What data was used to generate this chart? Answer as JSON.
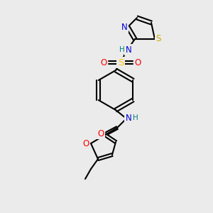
{
  "bg_color": "#ebebeb",
  "bond_color": "#000000",
  "bond_width": 1.5,
  "atom_colors": {
    "N": "#0000ff",
    "O": "#ff0000",
    "S_sulfonyl": "#ffcc00",
    "S_thiazole": "#ccaa00",
    "H": "#008080",
    "C": "#000000"
  },
  "font_size": 7.5
}
